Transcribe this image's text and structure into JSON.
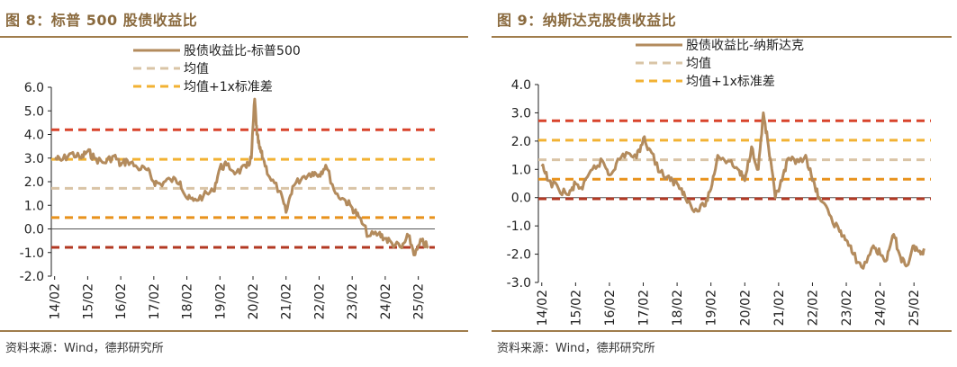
{
  "source_note": "资料来源：Wind，德邦研究所",
  "colors": {
    "series": "#b38b5d",
    "mean": "#d9c4a6",
    "plus_1sd": "#f2b233",
    "minus_1sd": "#e8921c",
    "plus_2sd": "#d8442c",
    "minus_2sd": "#b23822",
    "title": "#8a6a3e",
    "rule": "#a07d4c"
  },
  "chart_data": [
    {
      "type": "line",
      "title": "图 8：标普 500 股债收益比",
      "ylim": [
        -2.0,
        6.0
      ],
      "yticks": [
        "6.0",
        "5.0",
        "4.0",
        "3.0",
        "2.0",
        "1.0",
        "0.0",
        "-1.0",
        "-2.0"
      ],
      "xticks": [
        "14/02",
        "15/02",
        "16/02",
        "17/02",
        "18/02",
        "19/02",
        "20/02",
        "21/02",
        "22/02",
        "23/02",
        "24/02",
        "25/02"
      ],
      "legend": [
        "股债收益比-标普500",
        "均值",
        "均值+1x标准差"
      ],
      "series": {
        "name": "股债收益比-标普500",
        "x": [
          2014.1,
          2014.3,
          2014.6,
          2014.9,
          2015.1,
          2015.3,
          2015.6,
          2015.9,
          2016.1,
          2016.3,
          2016.6,
          2016.9,
          2017.1,
          2017.3,
          2017.6,
          2017.9,
          2018.1,
          2018.3,
          2018.6,
          2018.9,
          2019.1,
          2019.3,
          2019.6,
          2019.9,
          2020.05,
          2020.15,
          2020.22,
          2020.3,
          2020.4,
          2020.6,
          2020.9,
          2021.1,
          2021.3,
          2021.6,
          2021.9,
          2022.1,
          2022.3,
          2022.6,
          2022.9,
          2023.1,
          2023.3,
          2023.6,
          2023.9,
          2024.1,
          2024.3,
          2024.6,
          2024.8,
          2025.0,
          2025.2,
          2025.4
        ],
        "y": [
          3.0,
          2.9,
          3.2,
          3.0,
          3.3,
          3.0,
          2.8,
          3.1,
          2.7,
          2.9,
          2.6,
          2.5,
          2.0,
          1.9,
          2.1,
          2.0,
          1.3,
          1.2,
          1.4,
          1.6,
          2.6,
          2.7,
          2.4,
          2.6,
          3.0,
          5.5,
          4.0,
          3.4,
          3.0,
          2.2,
          1.6,
          0.7,
          1.8,
          2.2,
          2.4,
          2.3,
          2.7,
          1.5,
          1.2,
          0.9,
          0.5,
          -0.3,
          -0.2,
          -0.4,
          -0.6,
          -0.8,
          -0.3,
          -1.1,
          -0.5,
          -0.8
        ]
      },
      "lines": [
        {
          "name": "均值+2x标准差",
          "value": 4.2,
          "style": "plus_2sd"
        },
        {
          "name": "均值+1x标准差",
          "value": 2.95,
          "style": "plus_1sd"
        },
        {
          "name": "均值",
          "value": 1.72,
          "style": "mean"
        },
        {
          "name": "均值-1x标准差",
          "value": 0.48,
          "style": "minus_1sd"
        },
        {
          "name": "均值-2x标准差",
          "value": -0.78,
          "style": "minus_2sd"
        }
      ]
    },
    {
      "type": "line",
      "title": "图 9：纳斯达克股债收益比",
      "ylim": [
        -3.0,
        4.0
      ],
      "yticks": [
        "4.0",
        "3.0",
        "2.0",
        "1.0",
        "0.0",
        "-1.0",
        "-2.0",
        "-3.0"
      ],
      "xticks": [
        "14/02",
        "15/02",
        "16/02",
        "17/02",
        "18/02",
        "19/02",
        "20/02",
        "21/02",
        "22/02",
        "23/02",
        "24/02",
        "25/02"
      ],
      "legend": [
        "股债收益比-纳斯达克",
        "均值",
        "均值+1x标准差"
      ],
      "series": {
        "name": "股债收益比-纳斯达克",
        "x": [
          2014.1,
          2014.3,
          2014.6,
          2014.9,
          2015.1,
          2015.3,
          2015.6,
          2015.9,
          2016.1,
          2016.3,
          2016.6,
          2016.9,
          2017.1,
          2017.3,
          2017.6,
          2017.9,
          2018.1,
          2018.3,
          2018.6,
          2018.9,
          2019.1,
          2019.3,
          2019.6,
          2019.9,
          2020.1,
          2020.3,
          2020.5,
          2020.65,
          2020.8,
          2021.0,
          2021.2,
          2021.4,
          2021.6,
          2021.9,
          2022.1,
          2022.3,
          2022.6,
          2022.9,
          2023.1,
          2023.3,
          2023.6,
          2023.9,
          2024.1,
          2024.3,
          2024.5,
          2024.7,
          2024.9,
          2025.1,
          2025.3,
          2025.4
        ],
        "y": [
          1.1,
          0.6,
          0.3,
          0.1,
          0.5,
          0.3,
          1.0,
          1.3,
          0.8,
          1.2,
          1.6,
          1.4,
          2.1,
          1.7,
          0.9,
          0.6,
          0.5,
          0.2,
          -0.5,
          -0.3,
          0.3,
          1.5,
          1.3,
          1.0,
          0.6,
          1.8,
          1.0,
          3.0,
          1.8,
          0.0,
          0.6,
          1.4,
          1.2,
          1.5,
          0.6,
          0.0,
          -0.6,
          -1.2,
          -1.5,
          -2.0,
          -2.5,
          -1.7,
          -2.0,
          -2.2,
          -1.3,
          -2.1,
          -2.4,
          -1.7,
          -2.0,
          -1.8
        ]
      },
      "lines": [
        {
          "name": "均值+2x标准差",
          "value": 2.72,
          "style": "plus_2sd"
        },
        {
          "name": "均值+1x标准差",
          "value": 2.03,
          "style": "plus_1sd"
        },
        {
          "name": "均值",
          "value": 1.34,
          "style": "mean"
        },
        {
          "name": "均值-1x标准差",
          "value": 0.65,
          "style": "minus_1sd"
        },
        {
          "name": "均值-2x标准差",
          "value": -0.04,
          "style": "minus_2sd"
        }
      ]
    }
  ]
}
